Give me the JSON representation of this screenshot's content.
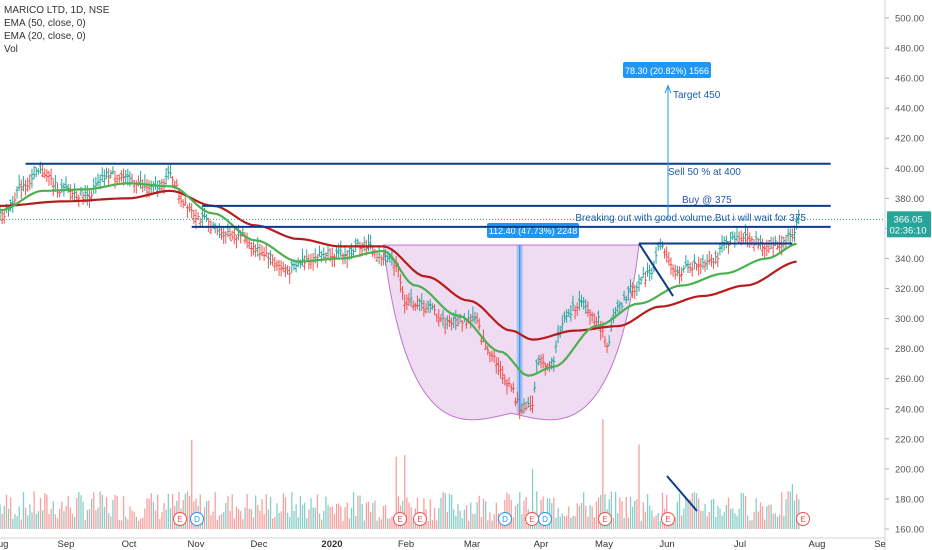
{
  "legend": {
    "symbol": "MARICO LTD, 1D, NSE",
    "ema50": "EMA (50, close, 0)",
    "ema20": "EMA (20, close, 0)",
    "vol": "Vol"
  },
  "colors": {
    "up": "#26a69a",
    "down": "#ef5350",
    "ema50": "#b71c1c",
    "ema20": "#4caf50",
    "trendline": "#0d3c8c",
    "cup_fill": "#e1bee7",
    "cup_stroke": "#9c27b0",
    "target_line": "#2196f3",
    "label_bg": "#2196f3",
    "price_tag": "#26a69a",
    "text_blue": "#1e5ba8"
  },
  "chart_data": {
    "type": "candlestick",
    "x_ticks": [
      "Aug",
      "Sep",
      "Oct",
      "Nov",
      "Dec",
      "2020",
      "Feb",
      "Mar",
      "Apr",
      "May",
      "Jun",
      "Jul",
      "Aug",
      "Se"
    ],
    "y_ticks": [
      "500.00",
      "480.00",
      "460.00",
      "440.00",
      "420.00",
      "400.00",
      "380.00",
      "360.00",
      "340.00",
      "320.00",
      "300.00",
      "280.00",
      "260.00",
      "240.00",
      "220.00",
      "200.00",
      "180.00",
      "160.00"
    ],
    "ylim": [
      160,
      500
    ],
    "current_price": "366.05",
    "countdown": "02:36:10",
    "price_anchors": [
      {
        "d": 0,
        "p": 368
      },
      {
        "d": 12,
        "p": 390
      },
      {
        "d": 20,
        "p": 398
      },
      {
        "d": 28,
        "p": 386
      },
      {
        "d": 40,
        "p": 382
      },
      {
        "d": 52,
        "p": 396
      },
      {
        "d": 62,
        "p": 392
      },
      {
        "d": 72,
        "p": 386
      },
      {
        "d": 80,
        "p": 395
      },
      {
        "d": 86,
        "p": 378
      },
      {
        "d": 95,
        "p": 366
      },
      {
        "d": 103,
        "p": 358
      },
      {
        "d": 112,
        "p": 356
      },
      {
        "d": 122,
        "p": 345
      },
      {
        "d": 135,
        "p": 332
      },
      {
        "d": 145,
        "p": 340
      },
      {
        "d": 155,
        "p": 344
      },
      {
        "d": 162,
        "p": 342
      },
      {
        "d": 170,
        "p": 350
      },
      {
        "d": 180,
        "p": 340
      },
      {
        "d": 186,
        "p": 338
      },
      {
        "d": 190,
        "p": 312
      },
      {
        "d": 200,
        "p": 308
      },
      {
        "d": 210,
        "p": 298
      },
      {
        "d": 222,
        "p": 300
      },
      {
        "d": 230,
        "p": 278
      },
      {
        "d": 238,
        "p": 258
      },
      {
        "d": 245,
        "p": 240
      },
      {
        "d": 250,
        "p": 245
      },
      {
        "d": 253,
        "p": 275
      },
      {
        "d": 258,
        "p": 268
      },
      {
        "d": 265,
        "p": 300
      },
      {
        "d": 272,
        "p": 310
      },
      {
        "d": 280,
        "p": 300
      },
      {
        "d": 285,
        "p": 284
      },
      {
        "d": 290,
        "p": 306
      },
      {
        "d": 297,
        "p": 320
      },
      {
        "d": 305,
        "p": 330
      },
      {
        "d": 310,
        "p": 348
      },
      {
        "d": 317,
        "p": 330
      },
      {
        "d": 325,
        "p": 335
      },
      {
        "d": 335,
        "p": 340
      },
      {
        "d": 343,
        "p": 352
      },
      {
        "d": 350,
        "p": 355
      },
      {
        "d": 358,
        "p": 348
      },
      {
        "d": 366,
        "p": 350
      },
      {
        "d": 372,
        "p": 355
      },
      {
        "d": 375,
        "p": 366
      }
    ],
    "ema50_anchors": [
      {
        "d": 0,
        "p": 375
      },
      {
        "d": 30,
        "p": 378
      },
      {
        "d": 60,
        "p": 380
      },
      {
        "d": 80,
        "p": 385
      },
      {
        "d": 100,
        "p": 375
      },
      {
        "d": 120,
        "p": 362
      },
      {
        "d": 140,
        "p": 353
      },
      {
        "d": 160,
        "p": 348
      },
      {
        "d": 180,
        "p": 348
      },
      {
        "d": 200,
        "p": 328
      },
      {
        "d": 220,
        "p": 312
      },
      {
        "d": 240,
        "p": 292
      },
      {
        "d": 250,
        "p": 286
      },
      {
        "d": 270,
        "p": 292
      },
      {
        "d": 290,
        "p": 295
      },
      {
        "d": 310,
        "p": 308
      },
      {
        "d": 330,
        "p": 315
      },
      {
        "d": 350,
        "p": 322
      },
      {
        "d": 375,
        "p": 338
      }
    ],
    "ema20_anchors": [
      {
        "d": 0,
        "p": 372
      },
      {
        "d": 20,
        "p": 385
      },
      {
        "d": 40,
        "p": 386
      },
      {
        "d": 60,
        "p": 390
      },
      {
        "d": 80,
        "p": 388
      },
      {
        "d": 100,
        "p": 370
      },
      {
        "d": 120,
        "p": 352
      },
      {
        "d": 140,
        "p": 338
      },
      {
        "d": 160,
        "p": 340
      },
      {
        "d": 180,
        "p": 345
      },
      {
        "d": 195,
        "p": 322
      },
      {
        "d": 215,
        "p": 302
      },
      {
        "d": 235,
        "p": 278
      },
      {
        "d": 248,
        "p": 262
      },
      {
        "d": 260,
        "p": 268
      },
      {
        "d": 280,
        "p": 295
      },
      {
        "d": 300,
        "p": 310
      },
      {
        "d": 320,
        "p": 322
      },
      {
        "d": 340,
        "p": 330
      },
      {
        "d": 360,
        "p": 340
      },
      {
        "d": 375,
        "p": 350
      }
    ],
    "earnings_markers": [
      "E",
      "D",
      "E",
      "E",
      "D",
      "E",
      "D",
      "E",
      "E",
      "E"
    ],
    "trendlines": [
      {
        "from": {
          "d": 12,
          "p": 403
        },
        "to": {
          "d": 390,
          "p": 403
        }
      },
      {
        "from": {
          "d": 95,
          "p": 375
        },
        "to": {
          "d": 390,
          "p": 375
        }
      },
      {
        "from": {
          "d": 90,
          "p": 361
        },
        "to": {
          "d": 390,
          "p": 361
        }
      },
      {
        "from": {
          "d": 300,
          "p": 350
        },
        "to": {
          "d": 372,
          "p": 350
        }
      },
      {
        "from": {
          "d": 300,
          "p": 350
        },
        "to": {
          "d": 316,
          "p": 315
        }
      }
    ],
    "cup": {
      "d_start": 180,
      "d_bottom": 240,
      "d_end": 300,
      "p_rim": 349,
      "p_bottom": 237
    },
    "breakout_range_label": "112.40 (47.73%) 2248",
    "target_label": "78.30 (20.82%) 1566",
    "annotations": [
      {
        "text": "Target 450"
      },
      {
        "text": "Sell 50 % at 400"
      },
      {
        "text": "Buy @ 375"
      },
      {
        "text": "Breaking out with good volume.But i will wait for 375"
      }
    ]
  }
}
